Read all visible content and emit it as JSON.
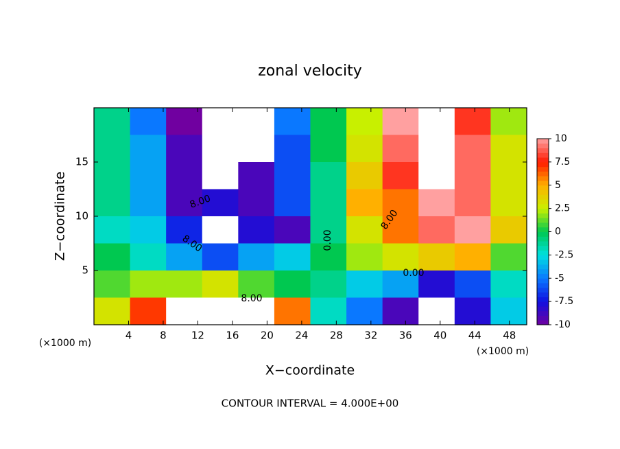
{
  "chart_data": {
    "type": "heatmap",
    "title": "zonal velocity",
    "x_label": "X−coordinate",
    "y_label": "Z−coordinate",
    "x_units": "(×1000 m)",
    "footer": "CONTOUR INTERVAL = 4.000E+00",
    "xlim": [
      0,
      50
    ],
    "ylim": [
      0,
      20
    ],
    "xticks": [
      4,
      8,
      12,
      16,
      20,
      24,
      28,
      32,
      36,
      40,
      44,
      48
    ],
    "yticks": [
      5,
      10,
      15
    ],
    "values": [
      [
        -1,
        -5,
        -10,
        -12,
        -12,
        -5,
        0,
        2.5,
        10,
        12,
        8,
        2
      ],
      [
        -1,
        -4,
        -9,
        -12,
        -11,
        -6,
        0,
        3,
        9,
        12,
        9,
        3
      ],
      [
        -1,
        -4,
        -9,
        -11,
        -9,
        -6,
        -1,
        4,
        8,
        11,
        9,
        3
      ],
      [
        -1,
        -4,
        -9,
        -8,
        -9,
        -6,
        -1,
        5,
        6,
        10,
        9,
        3
      ],
      [
        -2,
        -3,
        -7,
        -11,
        -8,
        -9,
        -1,
        3,
        6,
        9,
        10,
        4
      ],
      [
        0,
        -2,
        -4,
        -6,
        -4,
        -3,
        0,
        2,
        3,
        4,
        5,
        1
      ],
      [
        1,
        2,
        2,
        3,
        1,
        0,
        -1,
        -3,
        -4,
        -8,
        -6,
        -2
      ],
      [
        3,
        7,
        11,
        11,
        12,
        6,
        -2,
        -5,
        -9,
        -12,
        -8,
        -3
      ]
    ],
    "out_of_range_color": "#ffffff",
    "colorbar": {
      "ticks": [
        -10,
        -7.5,
        -5,
        -2.5,
        0,
        2.5,
        5,
        7.5,
        10
      ],
      "colors": [
        "#7000a0",
        "#1010e0",
        "#0a78ff",
        "#00e0e0",
        "#00c850",
        "#c8f000",
        "#ffb000",
        "#ff1a00",
        "#ffa0a0"
      ]
    },
    "contour_labels": [
      "8.00",
      "8.00",
      "0.00",
      "8.00",
      "0.00",
      "8.00"
    ]
  }
}
